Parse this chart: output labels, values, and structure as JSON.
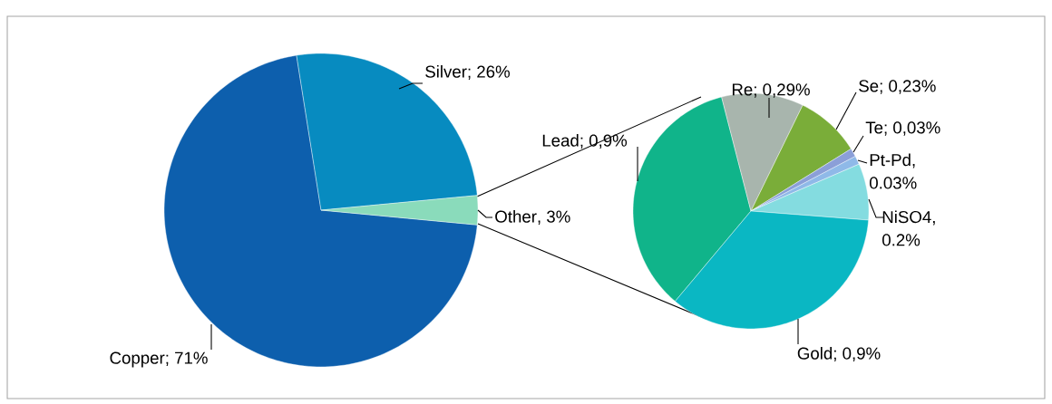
{
  "chart_data": [
    {
      "type": "pie",
      "categories": [
        "Copper",
        "Silver",
        "Other"
      ],
      "values": [
        71,
        26,
        3
      ],
      "value_labels": [
        "; 71%",
        "; 26%",
        ", 3%"
      ],
      "colors": [
        "#0d5fad",
        "#078bc0",
        "#8adbbb"
      ]
    },
    {
      "type": "pie",
      "categories": [
        "Lead",
        "Re",
        "Se",
        "Te",
        "Pt-Pd",
        "NiSO4",
        "Gold"
      ],
      "values": [
        0.9,
        0.29,
        0.23,
        0.03,
        0.03,
        0.2,
        0.9
      ],
      "value_labels": [
        "; 0,9%",
        "; 0,29%",
        "; 0,23%",
        "; 0,03%",
        ", 0.03%",
        ", 0.2%",
        "; 0,9%"
      ],
      "colors": [
        "#10b48a",
        "#a8b5ad",
        "#7aad39",
        "#8b9fd8",
        "#8fb9e8",
        "#84dce0",
        "#0ab7c3"
      ]
    }
  ]
}
